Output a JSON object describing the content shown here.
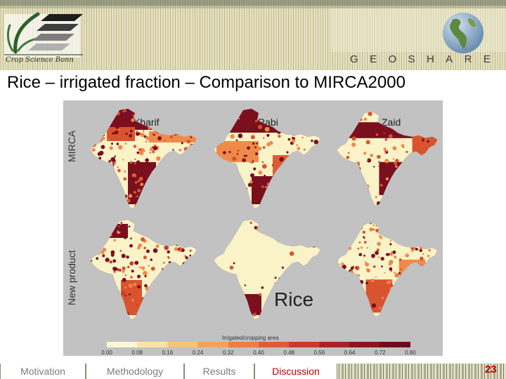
{
  "header": {
    "logo_text": "Crop Science Bonn",
    "brand": "GEOSHARE",
    "icons": [
      "crop-science-logo",
      "globe-icon"
    ]
  },
  "title": "Rice – irrigated fraction – Comparison to MIRCA2000",
  "figure": {
    "row_labels": [
      "MIRCA",
      "New product"
    ],
    "seasons": [
      "Kharif",
      "Rabi",
      "Zaid"
    ],
    "crop_label": "Rice",
    "legend": {
      "title": "Irrigated/cropping area",
      "ticks": [
        "0.00",
        "0.08",
        "0.16",
        "0.24",
        "0.32",
        "0.40",
        "0.48",
        "0.56",
        "0.64",
        "0.72",
        "0.80"
      ],
      "colors": [
        "#fdf8d4",
        "#fbe4a6",
        "#f8c478",
        "#f4a25a",
        "#ee7d43",
        "#e05a35",
        "#c93a2c",
        "#ab2324",
        "#8c1420",
        "#6e0b1c"
      ]
    }
  },
  "footer": {
    "tabs": [
      {
        "label": "Motivation",
        "active": false
      },
      {
        "label": "Methodology",
        "active": false
      },
      {
        "label": "Results",
        "active": false
      },
      {
        "label": "Discussion",
        "active": true
      }
    ],
    "page_number": "23",
    "accent": "#c00000"
  }
}
